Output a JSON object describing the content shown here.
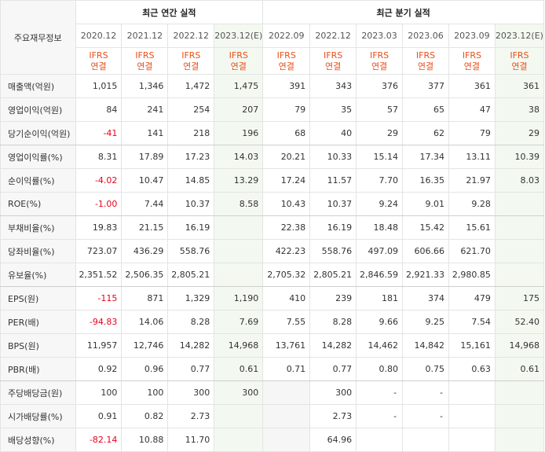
{
  "header": {
    "corner_label": "주요재무정보",
    "annual_group": "최근 연간 실적",
    "quarter_group": "최근 분기 실적",
    "annual_periods": [
      "2020.12",
      "2021.12",
      "2022.12",
      "2023.12(E)"
    ],
    "quarter_periods": [
      "2022.09",
      "2022.12",
      "2023.03",
      "2023.06",
      "2023.09",
      "2023.12(E)"
    ],
    "ifrs_line1": "IFRS",
    "ifrs_line2": "연결"
  },
  "rows": [
    {
      "label": "매출액(억원)",
      "values": [
        "1,015",
        "1,346",
        "1,472",
        "1,475",
        "391",
        "343",
        "376",
        "377",
        "361",
        "361"
      ]
    },
    {
      "label": "영업이익(억원)",
      "values": [
        "84",
        "241",
        "254",
        "207",
        "79",
        "35",
        "57",
        "65",
        "47",
        "38"
      ]
    },
    {
      "label": "당기순이익(억원)",
      "values": [
        "-41",
        "141",
        "218",
        "196",
        "68",
        "40",
        "29",
        "62",
        "79",
        "29"
      ]
    },
    {
      "label": "영업이익률(%)",
      "values": [
        "8.31",
        "17.89",
        "17.23",
        "14.03",
        "20.21",
        "10.33",
        "15.14",
        "17.34",
        "13.11",
        "10.39"
      ]
    },
    {
      "label": "순이익률(%)",
      "values": [
        "-4.02",
        "10.47",
        "14.85",
        "13.29",
        "17.24",
        "11.57",
        "7.70",
        "16.35",
        "21.97",
        "8.03"
      ]
    },
    {
      "label": "ROE(%)",
      "values": [
        "-1.00",
        "7.44",
        "10.37",
        "8.58",
        "10.43",
        "10.37",
        "9.24",
        "9.01",
        "9.28",
        ""
      ]
    },
    {
      "label": "부채비율(%)",
      "values": [
        "19.83",
        "21.15",
        "16.19",
        "",
        "22.38",
        "16.19",
        "18.48",
        "15.42",
        "15.61",
        ""
      ]
    },
    {
      "label": "당좌비율(%)",
      "values": [
        "723.07",
        "436.29",
        "558.76",
        "",
        "422.23",
        "558.76",
        "497.09",
        "606.66",
        "621.70",
        ""
      ]
    },
    {
      "label": "유보율(%)",
      "values": [
        "2,351.52",
        "2,506.35",
        "2,805.21",
        "",
        "2,705.32",
        "2,805.21",
        "2,846.59",
        "2,921.33",
        "2,980.85",
        ""
      ]
    },
    {
      "label": "EPS(원)",
      "values": [
        "-115",
        "871",
        "1,329",
        "1,190",
        "410",
        "239",
        "181",
        "374",
        "479",
        "175"
      ]
    },
    {
      "label": "PER(배)",
      "values": [
        "-94.83",
        "14.06",
        "8.28",
        "7.69",
        "7.55",
        "8.28",
        "9.66",
        "9.25",
        "7.54",
        "52.40"
      ]
    },
    {
      "label": "BPS(원)",
      "values": [
        "11,957",
        "12,746",
        "14,282",
        "14,968",
        "13,761",
        "14,282",
        "14,462",
        "14,842",
        "15,161",
        "14,968"
      ]
    },
    {
      "label": "PBR(배)",
      "values": [
        "0.92",
        "0.96",
        "0.77",
        "0.61",
        "0.71",
        "0.77",
        "0.80",
        "0.75",
        "0.63",
        "0.61"
      ]
    },
    {
      "label": "주당배당금(원)",
      "values": [
        "100",
        "100",
        "300",
        "300",
        "",
        "300",
        "-",
        "-",
        "",
        ""
      ]
    },
    {
      "label": "시가배당률(%)",
      "values": [
        "0.91",
        "0.82",
        "2.73",
        "",
        "",
        "2.73",
        "-",
        "-",
        "",
        ""
      ]
    },
    {
      "label": "배당성향(%)",
      "values": [
        "-82.14",
        "10.88",
        "11.70",
        "",
        "",
        "64.96",
        "",
        "",
        "",
        ""
      ]
    }
  ]
}
